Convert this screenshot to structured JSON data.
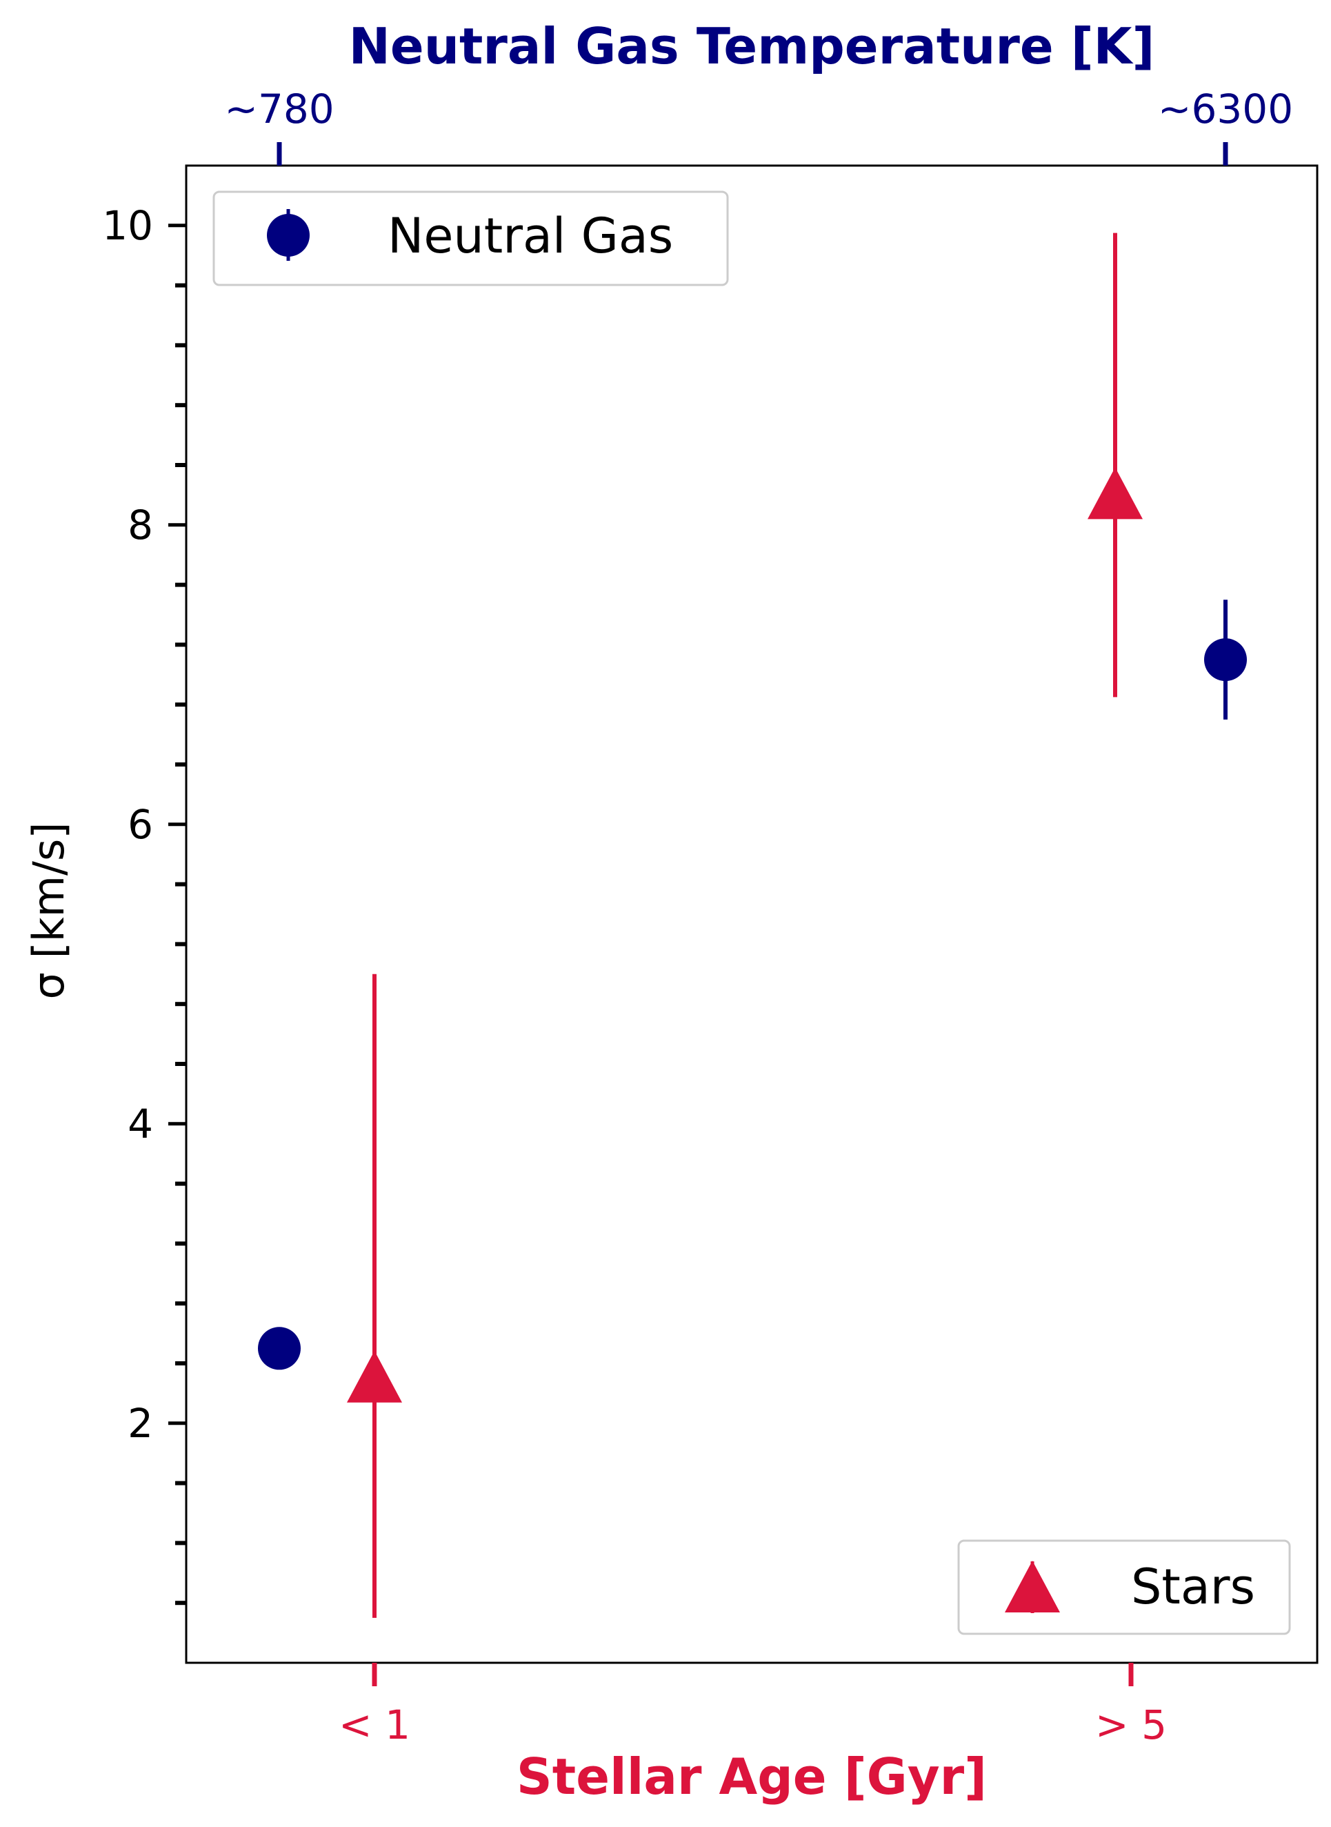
{
  "chart_data": {
    "type": "scatter",
    "title": "",
    "ylabel": "σ [km/s]",
    "ylim": [
      0.4,
      10.4
    ],
    "y_major_ticks": [
      2,
      4,
      6,
      8,
      10
    ],
    "y_minor_step": 0.4,
    "grid": false,
    "top_axis": {
      "label": "Neutral Gas Temperature [K]",
      "ticks": [
        {
          "label": "~780",
          "category": 0
        },
        {
          "label": "~6300",
          "category": 1
        }
      ],
      "color": "#00007f"
    },
    "bottom_axis": {
      "label": "Stellar Age [Gyr]",
      "ticks": [
        {
          "label": "< 1",
          "category": 0
        },
        {
          "label": "> 5",
          "category": 1
        }
      ],
      "color": "#dc143c"
    },
    "series": [
      {
        "name": "Neutral Gas",
        "marker": "circle",
        "color": "#00007f",
        "legend_position": "upper-left",
        "points": [
          {
            "category": 0,
            "y": 2.5,
            "y_low": 2.5,
            "y_high": 2.5
          },
          {
            "category": 1,
            "y": 7.1,
            "y_low": 6.7,
            "y_high": 7.5
          }
        ]
      },
      {
        "name": "Stars",
        "marker": "triangle",
        "color": "#dc143c",
        "legend_position": "lower-right",
        "points": [
          {
            "category": 0,
            "y": 2.3,
            "y_low": 0.7,
            "y_high": 5.0
          },
          {
            "category": 1,
            "y": 8.2,
            "y_low": 6.85,
            "y_high": 9.95
          }
        ]
      }
    ]
  }
}
